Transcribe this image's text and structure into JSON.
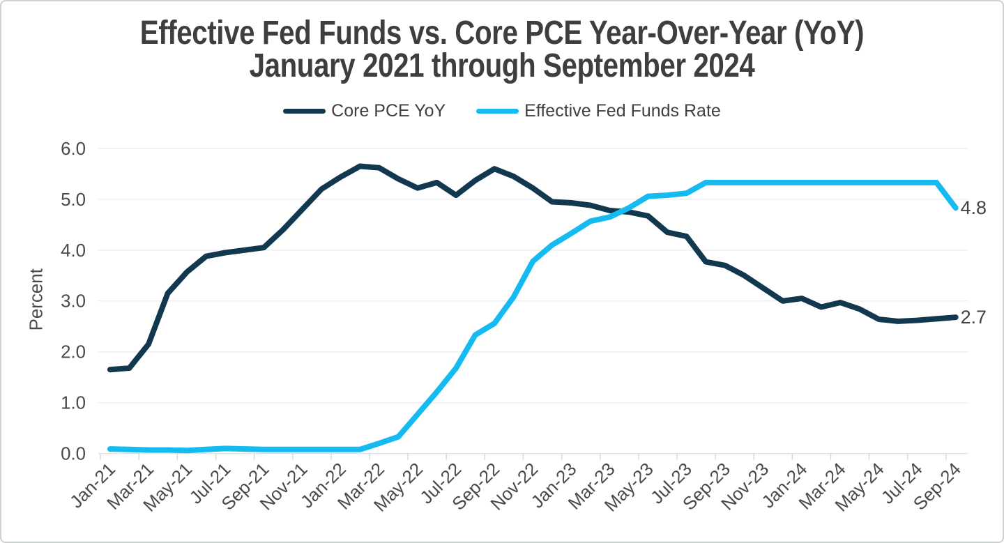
{
  "title": {
    "line1": "Effective Fed Funds vs. Core PCE Year-Over-Year (YoY)",
    "line2": "January 2021 through September 2024"
  },
  "legend": [
    {
      "label": "Core PCE YoY",
      "color": "#12384F"
    },
    {
      "label": "Effective Fed Funds Rate",
      "color": "#15BAF0"
    }
  ],
  "chart_data": {
    "type": "line",
    "title": "Effective Fed Funds vs. Core PCE Year-Over-Year (YoY) — January 2021 through September 2024",
    "ylabel": "Percent",
    "xlabel": "",
    "ylim": [
      0,
      6
    ],
    "ytick_step": 1,
    "ytick_labels": [
      "0.0",
      "1.0",
      "2.0",
      "3.0",
      "4.0",
      "5.0",
      "6.0"
    ],
    "grid": "horizontal",
    "legend_position": "top",
    "x_tick_every": 2,
    "x": [
      "Jan-21",
      "Feb-21",
      "Mar-21",
      "Apr-21",
      "May-21",
      "Jun-21",
      "Jul-21",
      "Aug-21",
      "Sep-21",
      "Oct-21",
      "Nov-21",
      "Dec-21",
      "Jan-22",
      "Feb-22",
      "Mar-22",
      "Apr-22",
      "May-22",
      "Jun-22",
      "Jul-22",
      "Aug-22",
      "Sep-22",
      "Oct-22",
      "Nov-22",
      "Dec-22",
      "Jan-23",
      "Feb-23",
      "Mar-23",
      "Apr-23",
      "May-23",
      "Jun-23",
      "Jul-23",
      "Aug-23",
      "Sep-23",
      "Oct-23",
      "Nov-23",
      "Dec-23",
      "Jan-24",
      "Feb-24",
      "Mar-24",
      "Apr-24",
      "May-24",
      "Jun-24",
      "Jul-24",
      "Aug-24",
      "Sep-24"
    ],
    "series": [
      {
        "name": "Core PCE YoY",
        "color": "#12384F",
        "end_label": "2.7",
        "values": [
          1.65,
          1.68,
          2.15,
          3.15,
          3.57,
          3.88,
          3.95,
          4.0,
          4.05,
          4.4,
          4.8,
          5.2,
          5.44,
          5.65,
          5.62,
          5.4,
          5.22,
          5.33,
          5.08,
          5.37,
          5.6,
          5.45,
          5.22,
          4.95,
          4.93,
          4.88,
          4.78,
          4.75,
          4.67,
          4.35,
          4.27,
          3.77,
          3.7,
          3.5,
          3.25,
          3.0,
          3.05,
          2.88,
          2.97,
          2.84,
          2.64,
          2.6,
          2.62,
          2.65,
          2.68
        ]
      },
      {
        "name": "Effective Fed Funds Rate",
        "color": "#15BAF0",
        "end_label": "4.8",
        "values": [
          0.09,
          0.08,
          0.07,
          0.07,
          0.06,
          0.08,
          0.1,
          0.09,
          0.08,
          0.08,
          0.08,
          0.08,
          0.08,
          0.08,
          0.2,
          0.33,
          0.77,
          1.21,
          1.68,
          2.33,
          2.56,
          3.08,
          3.78,
          4.1,
          4.33,
          4.57,
          4.65,
          4.83,
          5.06,
          5.08,
          5.12,
          5.33,
          5.33,
          5.33,
          5.33,
          5.33,
          5.33,
          5.33,
          5.33,
          5.33,
          5.33,
          5.33,
          5.33,
          5.33,
          4.83
        ]
      }
    ]
  },
  "colors": {
    "title_text": "#3e3e3e",
    "tick_text": "#4a4a4a",
    "end_label_text": "#414141",
    "gridline": "#edeff1",
    "axis_line": "#dfe2e4",
    "tick_mark": "#d7dadc",
    "card_border": "#ccd1d4",
    "background": "#ffffff"
  }
}
